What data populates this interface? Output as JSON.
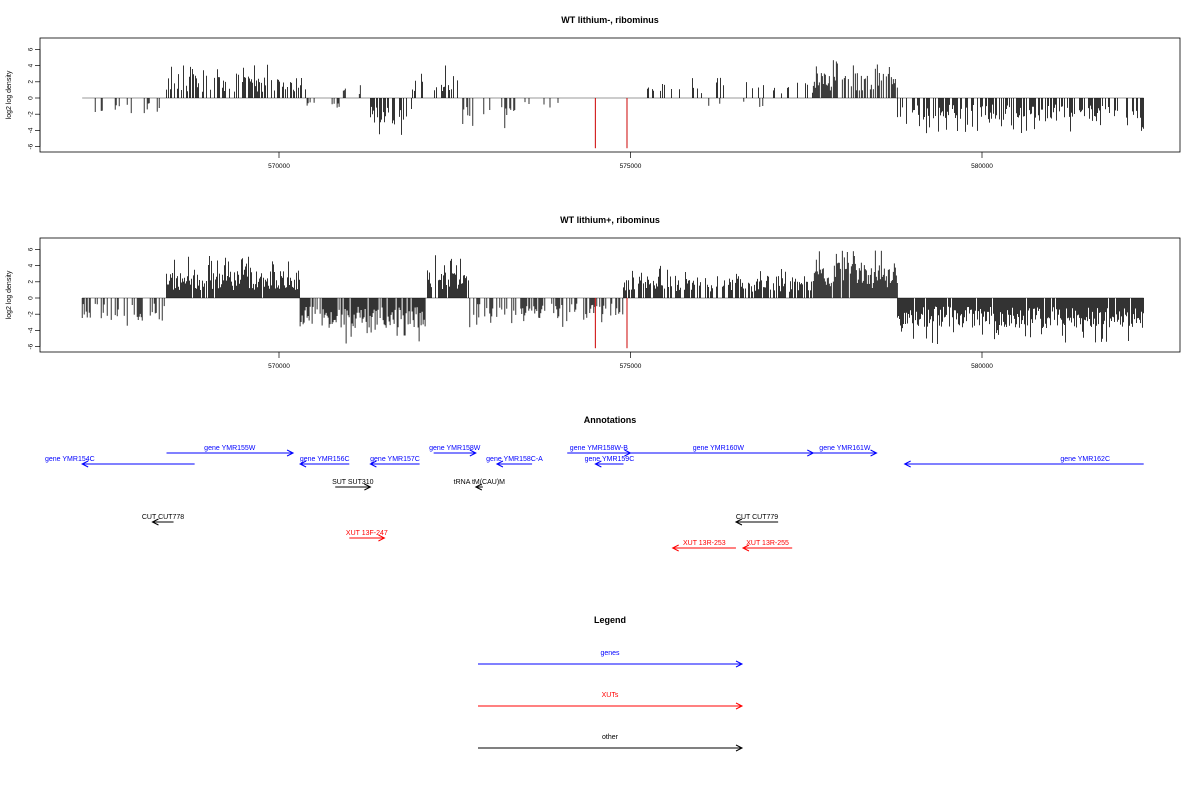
{
  "colors": {
    "gene": "#0000ff",
    "xut": "#ff0000",
    "other": "#000000",
    "signal": "#000000",
    "marker": "#cc0000",
    "axis": "#000000"
  },
  "chart_data": [
    {
      "type": "bar",
      "title": "WT lithium-, ribominus",
      "xlabel": "",
      "ylabel": "log2 log density",
      "xlim": [
        567200,
        582300
      ],
      "ylim": [
        -6.5,
        7.5
      ],
      "yticks": [
        -6,
        -4,
        -2,
        0,
        2,
        4,
        6
      ],
      "xticks": [
        570000,
        575000,
        580000
      ],
      "xtick_labels": [
        "570000",
        "575000",
        "580000"
      ],
      "grid": false,
      "track_start": 567200,
      "track_end": 582300,
      "segments": [
        {
          "from": 567200,
          "to": 568300,
          "level": -1.5,
          "density": 0.12
        },
        {
          "from": 568400,
          "to": 570400,
          "level": 2.2,
          "density": 0.55
        },
        {
          "from": 570400,
          "to": 570900,
          "level": -0.8,
          "density": 0.15
        },
        {
          "from": 570900,
          "to": 571300,
          "level": 1.0,
          "density": 0.15
        },
        {
          "from": 571300,
          "to": 571900,
          "level": -2.8,
          "density": 0.55
        },
        {
          "from": 571900,
          "to": 572600,
          "level": 2.2,
          "density": 0.4
        },
        {
          "from": 572600,
          "to": 573400,
          "level": -2.0,
          "density": 0.25
        },
        {
          "from": 573400,
          "to": 574000,
          "level": -1.0,
          "density": 0.12
        },
        {
          "from": 575200,
          "to": 577600,
          "level": 1.6,
          "density": 0.18
        },
        {
          "from": 576000,
          "to": 576900,
          "level": -1.2,
          "density": 0.12
        },
        {
          "from": 577600,
          "to": 578800,
          "level": 2.5,
          "density": 0.6
        },
        {
          "from": 578800,
          "to": 582300,
          "level": -2.3,
          "density": 0.6
        }
      ],
      "markers": [
        574500,
        574950
      ],
      "marker_value": -6.2
    },
    {
      "type": "bar",
      "title": "WT lithium+, ribominus",
      "xlabel": "",
      "ylabel": "log2 log density",
      "xlim": [
        567200,
        582300
      ],
      "ylim": [
        -6.5,
        7.5
      ],
      "yticks": [
        -6,
        -4,
        -2,
        0,
        2,
        4,
        6
      ],
      "xticks": [
        570000,
        575000,
        580000
      ],
      "xtick_labels": [
        "570000",
        "575000",
        "580000"
      ],
      "grid": false,
      "track_start": 567200,
      "track_end": 582300,
      "segments": [
        {
          "from": 567200,
          "to": 568400,
          "level": -2.0,
          "density": 0.35
        },
        {
          "from": 568400,
          "to": 570300,
          "level": 2.8,
          "density": 0.95
        },
        {
          "from": 570300,
          "to": 572100,
          "level": -3.0,
          "density": 0.85
        },
        {
          "from": 572100,
          "to": 572700,
          "level": 2.8,
          "density": 0.7
        },
        {
          "from": 572700,
          "to": 574900,
          "level": -2.0,
          "density": 0.55
        },
        {
          "from": 574900,
          "to": 577600,
          "level": 2.2,
          "density": 0.7
        },
        {
          "from": 577600,
          "to": 578800,
          "level": 3.5,
          "density": 0.95
        },
        {
          "from": 578800,
          "to": 582300,
          "level": -3.0,
          "density": 0.95
        }
      ],
      "markers": [
        574500,
        574950
      ],
      "marker_value": -6.2
    }
  ],
  "annotations": {
    "title": "Annotations",
    "xlim": [
      567200,
      582300
    ],
    "features": [
      {
        "label": "gene YMR154C",
        "type": "gene",
        "from": 567200,
        "to": 568800,
        "strand": "-",
        "row": 1
      },
      {
        "label": "gene YMR155W",
        "type": "gene",
        "from": 568400,
        "to": 570200,
        "strand": "+",
        "row": 0
      },
      {
        "label": "gene YMR156C",
        "type": "gene",
        "from": 570300,
        "to": 571000,
        "strand": "-",
        "row": 1
      },
      {
        "label": "gene YMR157C",
        "type": "gene",
        "from": 571300,
        "to": 572000,
        "strand": "-",
        "row": 1
      },
      {
        "label": "gene YMR158W",
        "type": "gene",
        "from": 572200,
        "to": 572800,
        "strand": "+",
        "row": 0
      },
      {
        "label": "gene YMR158C-A",
        "type": "gene",
        "from": 573100,
        "to": 573600,
        "strand": "-",
        "row": 1
      },
      {
        "label": "gene YMR158W-B",
        "type": "gene",
        "from": 574100,
        "to": 575000,
        "strand": "+",
        "row": 0
      },
      {
        "label": "gene YMR159C",
        "type": "gene",
        "from": 574500,
        "to": 574900,
        "strand": "-",
        "row": 1
      },
      {
        "label": "gene YMR160W",
        "type": "gene",
        "from": 574900,
        "to": 577600,
        "strand": "+",
        "row": 0
      },
      {
        "label": "gene YMR161W",
        "type": "gene",
        "from": 577600,
        "to": 578500,
        "strand": "+",
        "row": 0
      },
      {
        "label": "gene YMR162C",
        "type": "gene",
        "from": 578900,
        "to": 582300,
        "strand": "-",
        "row": 1
      },
      {
        "label": "SUT SUT310",
        "type": "other",
        "from": 570800,
        "to": 571300,
        "strand": "+",
        "row": 2
      },
      {
        "label": "tRNA tM(CAU)M",
        "type": "other",
        "from": 572800,
        "to": 572900,
        "strand": "-",
        "row": 2
      },
      {
        "label": "CUT CUT778",
        "type": "other",
        "from": 568200,
        "to": 568500,
        "strand": "-",
        "row": 3
      },
      {
        "label": "XUT 13F-247",
        "type": "xut",
        "from": 571000,
        "to": 571500,
        "strand": "+",
        "row": 4
      },
      {
        "label": "CUT CUT779",
        "type": "other",
        "from": 576500,
        "to": 577100,
        "strand": "-",
        "row": 3
      },
      {
        "label": "XUT 13R-253",
        "type": "xut",
        "from": 575600,
        "to": 576500,
        "strand": "-",
        "row": 5
      },
      {
        "label": "XUT 13R-255",
        "type": "xut",
        "from": 576600,
        "to": 577300,
        "strand": "-",
        "row": 5
      }
    ]
  },
  "legend": {
    "title": "Legend",
    "items": [
      {
        "label": "genes",
        "type": "gene"
      },
      {
        "label": "XUTs",
        "type": "xut"
      },
      {
        "label": "other",
        "type": "other"
      }
    ]
  }
}
